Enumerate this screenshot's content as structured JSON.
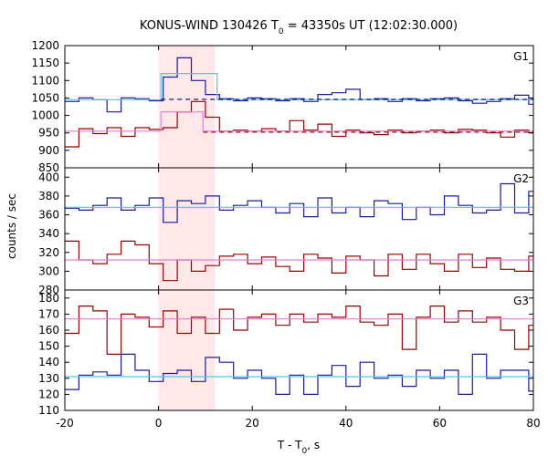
{
  "chart_data": {
    "type": "line",
    "title_parts": [
      "KONUS-WIND 130426 T",
      "0",
      " = 43350s UT (12:02:30.000)"
    ],
    "xlabel_parts": [
      "T - T",
      "0",
      ", s"
    ],
    "ylabel": "counts / sec",
    "xlim": [
      -20,
      80
    ],
    "xticks": [
      -20,
      0,
      20,
      40,
      60,
      80
    ],
    "shaded_interval": [
      0,
      12
    ],
    "colors": {
      "shade": "#ffe8e8",
      "blue": "#1a1a9e",
      "red": "#990000",
      "cyan_fit": "#4fc7e8",
      "pink_fit": "#e77fd0",
      "dash_blue": "#00007a",
      "dash_red": "#8b0000"
    },
    "panels": [
      {
        "name": "G1",
        "ylim": [
          850,
          1200
        ],
        "yticks": [
          850,
          900,
          950,
          1000,
          1050,
          1100,
          1150,
          1200
        ],
        "series": [
          {
            "color": "blue",
            "x": [
              -20,
              -17,
              -14,
              -11,
              -8,
              -5,
              -2,
              1,
              4,
              7,
              10,
              13,
              16,
              19,
              22,
              25,
              28,
              31,
              34,
              37,
              40,
              43,
              46,
              49,
              52,
              55,
              58,
              61,
              64,
              67,
              70,
              73,
              76,
              79,
              80
            ],
            "y": [
              1040,
              1050,
              1045,
              1010,
              1050,
              1048,
              1042,
              1110,
              1165,
              1100,
              1060,
              1048,
              1042,
              1050,
              1048,
              1042,
              1048,
              1040,
              1060,
              1065,
              1075,
              1045,
              1048,
              1040,
              1048,
              1042,
              1048,
              1050,
              1042,
              1035,
              1040,
              1048,
              1058,
              1032,
              1032
            ]
          },
          {
            "color": "red",
            "x": [
              -20,
              -17,
              -14,
              -11,
              -8,
              -5,
              -2,
              1,
              4,
              7,
              10,
              13,
              16,
              19,
              22,
              25,
              28,
              31,
              34,
              37,
              40,
              43,
              46,
              49,
              52,
              55,
              58,
              61,
              64,
              67,
              70,
              73,
              76,
              79,
              80
            ],
            "y": [
              910,
              962,
              948,
              965,
              940,
              965,
              960,
              965,
              1010,
              1040,
              995,
              955,
              958,
              955,
              962,
              955,
              985,
              958,
              975,
              940,
              958,
              950,
              945,
              958,
              950,
              955,
              958,
              950,
              960,
              958,
              950,
              938,
              958,
              950,
              950
            ]
          },
          {
            "color": "cyan_fit",
            "x": [
              -20,
              0.5,
              0.5,
              12.5,
              12.5,
              80
            ],
            "y": [
              1045,
              1045,
              1120,
              1120,
              1045,
              1045
            ]
          },
          {
            "color": "pink_fit",
            "x": [
              -20,
              0.5,
              0.5,
              9.5,
              9.5,
              80
            ],
            "y": [
              955,
              955,
              1010,
              1010,
              955,
              955
            ]
          }
        ],
        "dashed_levels": [
          {
            "color": "dash_blue",
            "y": 1046,
            "from": 0.5
          },
          {
            "color": "dash_red",
            "y": 952,
            "from": 9.5
          }
        ]
      },
      {
        "name": "G2",
        "ylim": [
          280,
          410
        ],
        "yticks": [
          280,
          300,
          320,
          340,
          360,
          380,
          400
        ],
        "series": [
          {
            "color": "blue",
            "x": [
              -20,
              -17,
              -14,
              -11,
              -8,
              -5,
              -2,
              1,
              4,
              7,
              10,
              13,
              16,
              19,
              22,
              25,
              28,
              31,
              34,
              37,
              40,
              43,
              46,
              49,
              52,
              55,
              58,
              61,
              64,
              67,
              70,
              73,
              76,
              79,
              80
            ],
            "y": [
              367,
              365,
              370,
              378,
              365,
              370,
              378,
              352,
              375,
              372,
              380,
              365,
              370,
              375,
              368,
              362,
              372,
              358,
              378,
              362,
              368,
              358,
              375,
              372,
              355,
              368,
              360,
              380,
              370,
              362,
              365,
              393,
              362,
              385,
              368
            ]
          },
          {
            "color": "red",
            "x": [
              -20,
              -17,
              -14,
              -11,
              -8,
              -5,
              -2,
              1,
              4,
              7,
              10,
              13,
              16,
              19,
              22,
              25,
              28,
              31,
              34,
              37,
              40,
              43,
              46,
              49,
              52,
              55,
              58,
              61,
              64,
              67,
              70,
              73,
              76,
              79,
              80
            ],
            "y": [
              332,
              312,
              308,
              318,
              332,
              328,
              308,
              290,
              312,
              300,
              306,
              316,
              318,
              308,
              315,
              305,
              300,
              318,
              314,
              298,
              316,
              312,
              295,
              318,
              302,
              318,
              308,
              300,
              318,
              304,
              314,
              302,
              300,
              316,
              318
            ]
          },
          {
            "color": "cyan_fit",
            "x": [
              -20,
              80
            ],
            "y": [
              368,
              368
            ]
          },
          {
            "color": "pink_fit",
            "x": [
              -20,
              80
            ],
            "y": [
              312,
              312
            ]
          }
        ],
        "dashed_levels": []
      },
      {
        "name": "G3",
        "ylim": [
          110,
          185
        ],
        "yticks": [
          110,
          120,
          130,
          140,
          150,
          160,
          170,
          180
        ],
        "series": [
          {
            "color": "red",
            "x": [
              -20,
              -17,
              -14,
              -11,
              -8,
              -5,
              -2,
              1,
              4,
              7,
              10,
              13,
              16,
              19,
              22,
              25,
              28,
              31,
              34,
              37,
              40,
              43,
              46,
              49,
              52,
              55,
              58,
              61,
              64,
              67,
              70,
              73,
              76,
              79,
              80
            ],
            "y": [
              158,
              175,
              172,
              145,
              170,
              168,
              162,
              172,
              158,
              168,
              158,
              173,
              160,
              168,
              170,
              163,
              170,
              165,
              170,
              168,
              175,
              165,
              163,
              170,
              148,
              168,
              175,
              165,
              172,
              165,
              168,
              160,
              148,
              163,
              163
            ]
          },
          {
            "color": "blue",
            "x": [
              -20,
              -17,
              -14,
              -11,
              -8,
              -5,
              -2,
              1,
              4,
              7,
              10,
              13,
              16,
              19,
              22,
              25,
              28,
              31,
              34,
              37,
              40,
              43,
              46,
              49,
              52,
              55,
              58,
              61,
              64,
              67,
              70,
              73,
              76,
              79,
              80
            ],
            "y": [
              123,
              132,
              134,
              132,
              145,
              135,
              128,
              133,
              135,
              128,
              143,
              140,
              130,
              135,
              130,
              120,
              132,
              120,
              132,
              138,
              125,
              140,
              130,
              132,
              125,
              135,
              130,
              135,
              120,
              145,
              130,
              135,
              135,
              122,
              122
            ]
          },
          {
            "color": "cyan_fit",
            "x": [
              -20,
              80
            ],
            "y": [
              131,
              131
            ]
          },
          {
            "color": "pink_fit",
            "x": [
              -20,
              80
            ],
            "y": [
              167,
              167
            ]
          }
        ],
        "dashed_levels": []
      }
    ]
  }
}
